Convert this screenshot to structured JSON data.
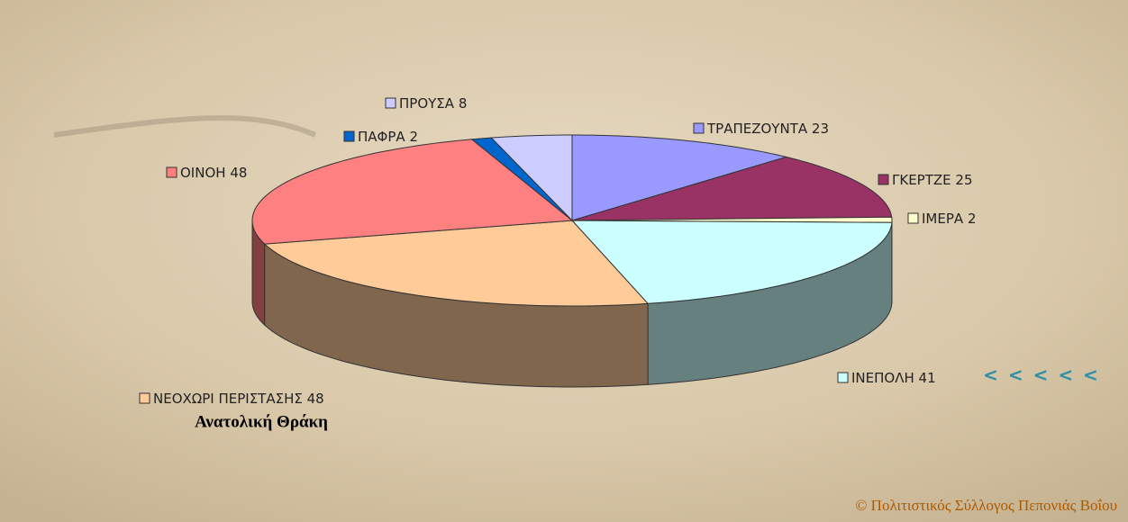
{
  "chart_data": {
    "type": "pie3d",
    "categories": [
      "ΤΡΑΠΕΖΟΥΝΤΑ",
      "ΓΚΕΡΤΖΕ",
      "ΙΜΕΡΑ",
      "ΙΝΕΠΟΛΗ",
      "ΝΕΟΧΩΡΙ ΠΕΡΙΣΤΑΣΗΣ",
      "ΟΙΝΟΗ",
      "ΠΑΦΡΑ",
      "ΠΡΟΥΣΑ"
    ],
    "values": [
      23,
      25,
      2,
      41,
      48,
      48,
      2,
      8
    ],
    "colors": [
      "#9999ff",
      "#993366",
      "#ffffcc",
      "#ccffff",
      "#ffcc99",
      "#ff8080",
      "#0066cc",
      "#ccccff"
    ],
    "annotations": [
      "Ανατολική Θράκη",
      "< < < < <"
    ],
    "copyright": "© Πολιτιστικός Σύλλογος Πεπονιάς Βοΐου"
  }
}
